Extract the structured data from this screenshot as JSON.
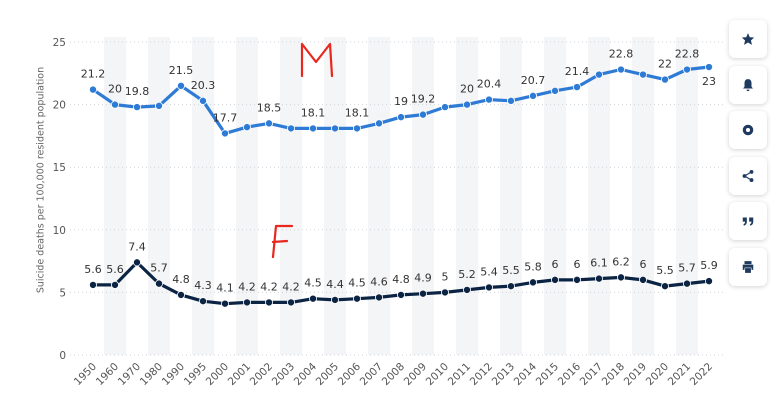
{
  "chart_data": {
    "type": "line",
    "ylabel": "Suicide deaths per 100,000 resident population",
    "xlabel": "",
    "ylim": [
      0,
      25
    ],
    "yticks": [
      0,
      5,
      10,
      15,
      20,
      25
    ],
    "grid": "horizontal dotted",
    "categories": [
      "1950",
      "1960",
      "1970",
      "1980",
      "1990",
      "1995",
      "2000",
      "2001",
      "2002",
      "2003",
      "2004",
      "2005",
      "2006",
      "2007",
      "2008",
      "2009",
      "2010",
      "2011",
      "2012",
      "2013",
      "2014",
      "2015",
      "2016",
      "2017",
      "2018",
      "2019",
      "2020",
      "2021",
      "2022"
    ],
    "series": [
      {
        "color": "#2e7bd6",
        "values": [
          21.2,
          20,
          19.8,
          19.9,
          21.5,
          20.3,
          17.7,
          18.2,
          18.5,
          18.1,
          18.1,
          18.1,
          18.1,
          18.5,
          19,
          19.2,
          19.8,
          20,
          20.4,
          20.3,
          20.7,
          21.1,
          21.4,
          22.4,
          22.8,
          22.4,
          22,
          22.8,
          23
        ],
        "labels": [
          "21.2",
          "20",
          "19.8",
          "",
          "21.5",
          "20.3",
          "17.7",
          "",
          "18.5",
          "",
          "18.1",
          "",
          "18.1",
          "",
          "19",
          "19.2",
          "",
          "20",
          "20.4",
          "",
          "20.7",
          "",
          "21.4",
          "",
          "22.8",
          "",
          "22",
          "22.8",
          "23"
        ]
      },
      {
        "color": "#0b2444",
        "values": [
          5.6,
          5.6,
          7.4,
          5.7,
          4.8,
          4.3,
          4.1,
          4.2,
          4.2,
          4.2,
          4.5,
          4.4,
          4.5,
          4.6,
          4.8,
          4.9,
          5,
          5.2,
          5.4,
          5.5,
          5.8,
          6,
          6,
          6.1,
          6.2,
          6,
          5.5,
          5.7,
          5.9
        ],
        "labels": [
          "5.6",
          "5.6",
          "7.4",
          "5.7",
          "4.8",
          "4.3",
          "4.1",
          "4.2",
          "4.2",
          "4.2",
          "4.5",
          "4.4",
          "4.5",
          "4.6",
          "4.8",
          "4.9",
          "5",
          "5.2",
          "5.4",
          "5.5",
          "5.8",
          "6",
          "6",
          "6.1",
          "6.2",
          "6",
          "5.5",
          "5.7",
          "5.9"
        ]
      }
    ],
    "annotations": [
      {
        "text": "M",
        "color": "#e8281e"
      },
      {
        "text": "F",
        "color": "#e8281e"
      }
    ]
  },
  "side_panel": [
    {
      "icon": "star-icon"
    },
    {
      "icon": "bell-icon"
    },
    {
      "icon": "gear-icon"
    },
    {
      "icon": "share-icon"
    },
    {
      "icon": "quote-icon"
    },
    {
      "icon": "print-icon"
    }
  ]
}
